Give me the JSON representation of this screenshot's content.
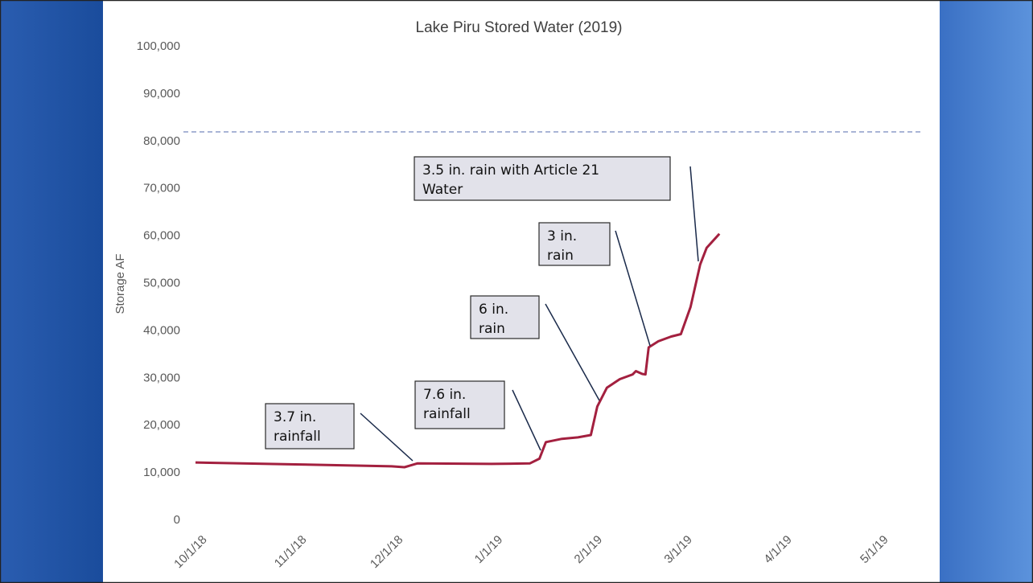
{
  "chart_data": {
    "type": "line",
    "title": "Lake Piru Stored Water (2019)",
    "y_label": "Storage AF",
    "xlim": [
      "10/1/18",
      "5/1/19"
    ],
    "xticks": [
      "10/1/18",
      "11/1/18",
      "12/1/18",
      "1/1/19",
      "2/1/19",
      "3/1/19",
      "4/1/19",
      "5/1/19"
    ],
    "ylim": [
      0,
      100000
    ],
    "yticks": [
      0,
      {
        "value": 10000,
        "label": "10,000"
      },
      {
        "value": 20000,
        "label": "20,000"
      },
      {
        "value": 30000,
        "label": "30,000"
      },
      {
        "value": 40000,
        "label": "40,000"
      },
      {
        "value": 50000,
        "label": "50,000"
      },
      {
        "value": 60000,
        "label": "60,000"
      },
      {
        "value": 70000,
        "label": "70,000"
      },
      {
        "value": 80000,
        "label": "80,000"
      },
      {
        "value": 90000,
        "label": "90,000"
      },
      {
        "value": 100000,
        "label": "100,000"
      }
    ],
    "reference_line": {
      "value": 82000,
      "color": "#a9b4d6"
    },
    "series": [
      {
        "name": "Storage",
        "color": "#a3203f",
        "x": [
          "10/1/18",
          "11/1/18",
          "12/1/18",
          "12/5/18",
          "12/9/18",
          "1/1/19",
          "1/13/19",
          "1/16/19",
          "1/18/19",
          "1/23/19",
          "1/28/19",
          "2/1/19",
          "2/3/19",
          "2/6/19",
          "2/10/19",
          "2/14/19",
          "2/15/19",
          "2/17/19",
          "2/18/19",
          "2/19/19",
          "2/22/19",
          "2/26/19",
          "3/1/19",
          "3/4/19",
          "3/7/19",
          "3/9/19",
          "3/13/19"
        ],
        "values": [
          12200,
          11800,
          11400,
          11200,
          12000,
          11900,
          12000,
          13000,
          16500,
          17200,
          17500,
          18000,
          24000,
          28000,
          29800,
          30800,
          31500,
          30900,
          30800,
          36500,
          37800,
          38800,
          39300,
          45000,
          54000,
          57500,
          60500
        ]
      }
    ],
    "annotations": [
      {
        "lines": [
          "3.7 in.",
          "rainfall"
        ]
      },
      {
        "lines": [
          "7.6 in.",
          "rainfall"
        ]
      },
      {
        "lines": [
          "6 in.",
          "rain"
        ]
      },
      {
        "lines": [
          "3 in.",
          "rain"
        ]
      },
      {
        "lines": [
          "3.5 in. rain with Article 21",
          "Water"
        ]
      }
    ]
  }
}
